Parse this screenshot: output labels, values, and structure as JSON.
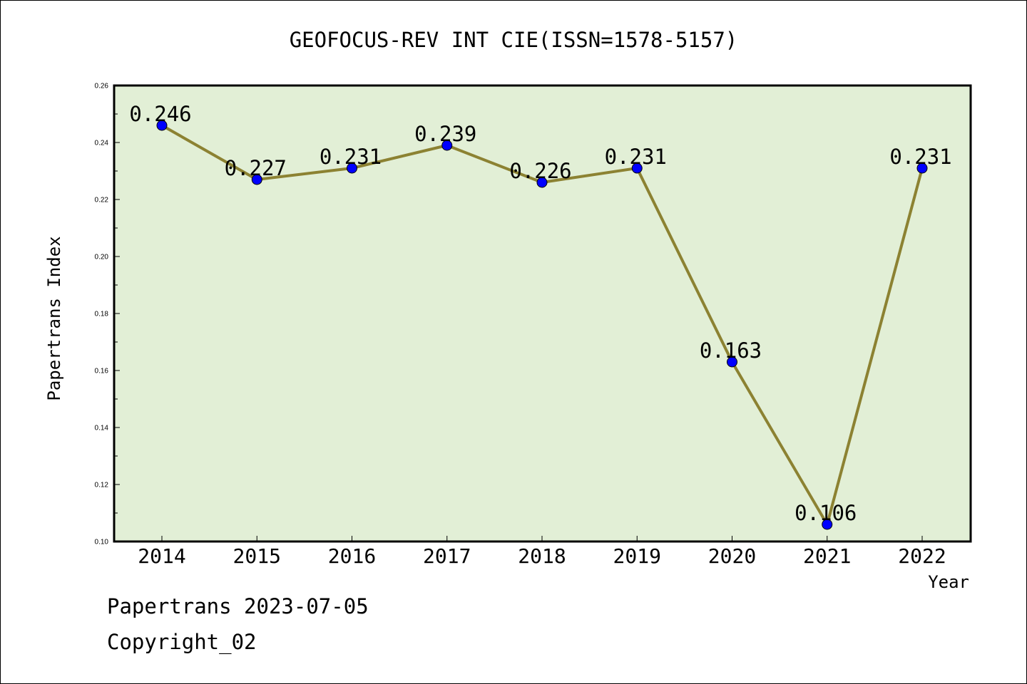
{
  "chart_data": {
    "type": "line",
    "title": "GEOFOCUS-REV INT CIE(ISSN=1578-5157)",
    "xlabel": "Year",
    "ylabel": "Papertrans Index",
    "categories": [
      "2014",
      "2015",
      "2016",
      "2017",
      "2018",
      "2019",
      "2020",
      "2021",
      "2022"
    ],
    "values": [
      0.246,
      0.227,
      0.231,
      0.239,
      0.226,
      0.231,
      0.163,
      0.106,
      0.231
    ],
    "data_labels": [
      "0.246",
      "0.227",
      "0.231",
      "0.239",
      "0.226",
      "0.231",
      "0.163",
      "0.106",
      "0.231"
    ],
    "ylim": [
      0.1,
      0.26
    ],
    "yticks": [
      "0.10",
      "0.12",
      "0.14",
      "0.16",
      "0.18",
      "0.20",
      "0.22",
      "0.24",
      "0.26"
    ],
    "grid": false,
    "legend": "none",
    "colors": {
      "plot_background": "#e2efd6",
      "line": "#8c8232",
      "marker": "#0000ff",
      "axes": "#000000"
    }
  },
  "footer": {
    "line1": "Papertrans 2023-07-05",
    "line2": "Copyright_02"
  }
}
